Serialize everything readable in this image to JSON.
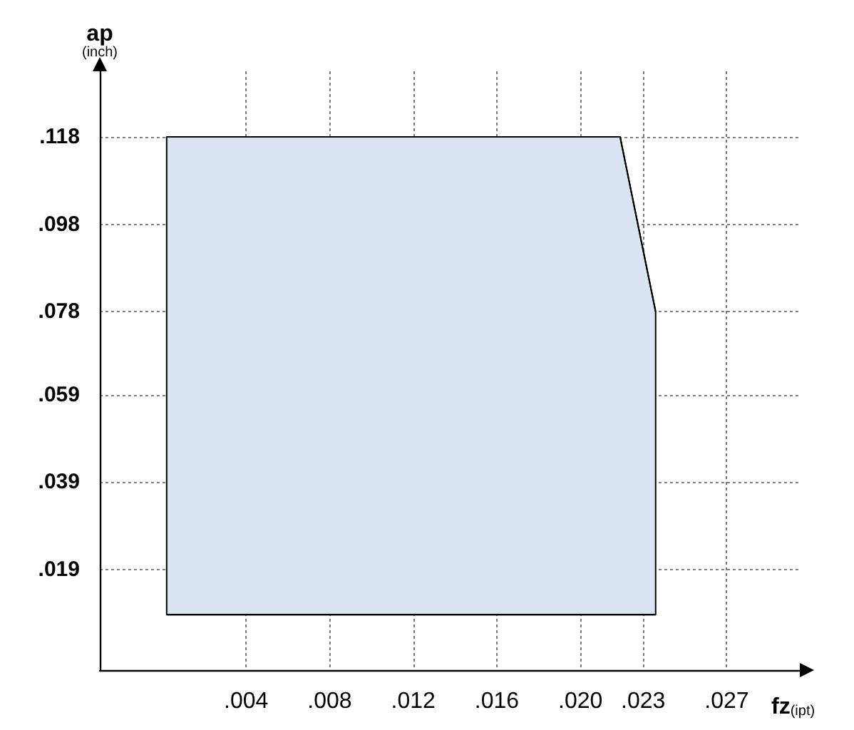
{
  "chart_data": {
    "type": "area",
    "xlabel": "fz(ipt)",
    "ylabel": "ap (inch)",
    "series": [
      {
        "color": "#dae3f3",
        "x": [
          0.0002,
          0.0219,
          0.0236
        ],
        "values": [
          0.118,
          0.118,
          0.078
        ]
      },
      {
        "type": "line",
        "color": "#000000",
        "x": [
          0.0002,
          0.0219,
          0.0236
        ],
        "values": [
          0.0087,
          0.0087,
          0.0087
        ]
      }
    ],
    "xlim": [
      -0.003,
      0.0305
    ],
    "xticks": [
      {
        "value": 0.004,
        "label": ".004"
      },
      {
        "value": 0.008,
        "label": ".008"
      },
      {
        "value": 0.012,
        "label": ".012"
      },
      {
        "value": 0.016,
        "label": ".016"
      },
      {
        "value": 0.02,
        "label": ".020"
      },
      {
        "value": 0.023,
        "label": ".023"
      },
      {
        "value": 0.027,
        "label": ".027"
      }
    ],
    "ylim": [
      -0.004,
      0.133
    ],
    "yticks": [
      {
        "value": 0.019,
        "label": ".019"
      },
      {
        "value": 0.039,
        "label": ".039"
      },
      {
        "value": 0.059,
        "label": ".059"
      },
      {
        "value": 0.078,
        "label": ".078"
      },
      {
        "value": 0.098,
        "label": ".098"
      },
      {
        "value": 0.118,
        "label": ".118"
      }
    ],
    "grid": true,
    "line_style": "solid"
  }
}
